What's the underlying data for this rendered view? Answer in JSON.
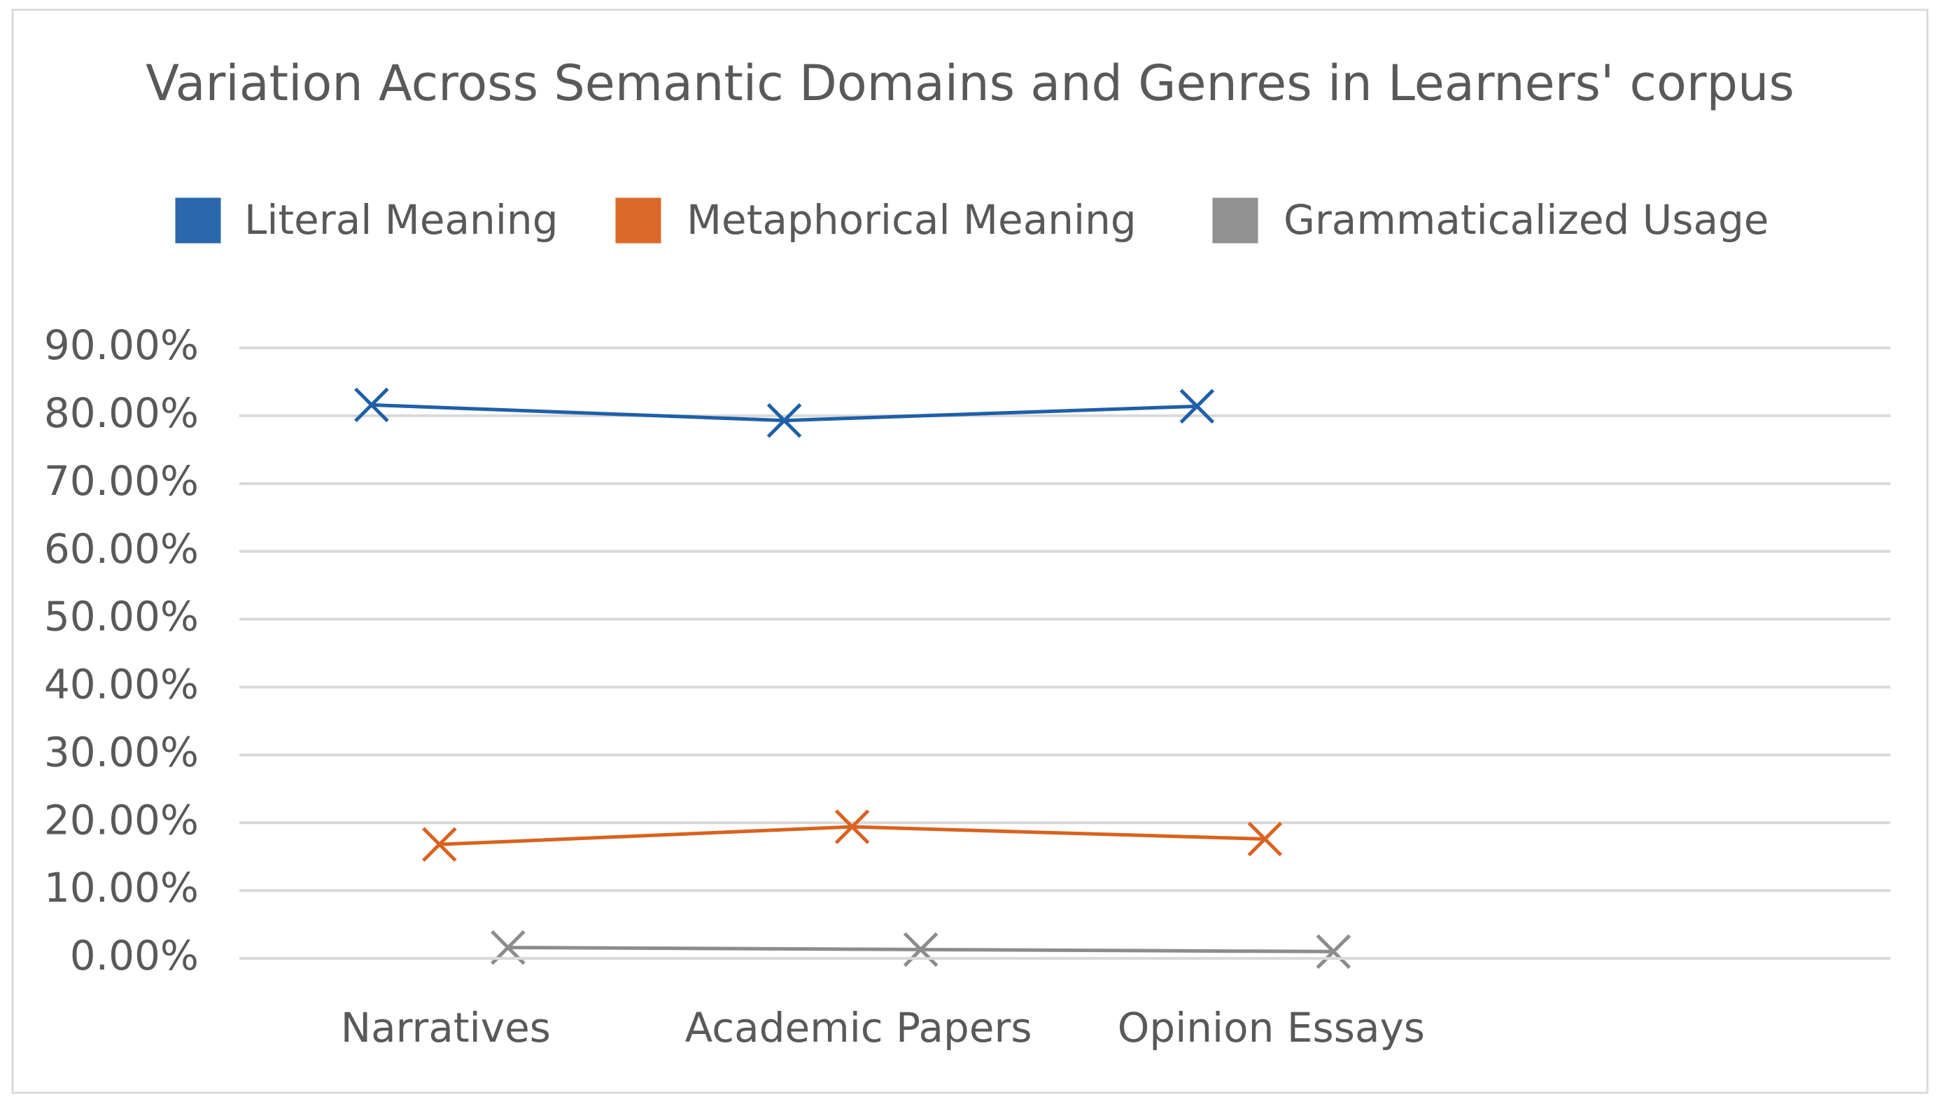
{
  "chart_data": {
    "type": "line",
    "title": "Variation Across Semantic Domains and Genres in Learners' corpus",
    "categories": [
      "Narratives",
      "Academic Papers",
      "Opinion Essays",
      null
    ],
    "series": [
      {
        "name": "Literal Meaning",
        "color": "#1f5fa8",
        "values": [
          81.6,
          79.3,
          81.4,
          null
        ]
      },
      {
        "name": "Metaphorical Meaning",
        "color": "#d9621f",
        "values": [
          16.8,
          19.4,
          17.6,
          null
        ]
      },
      {
        "name": "Grammaticalized Usage",
        "color": "#8c8c8c",
        "values": [
          1.6,
          1.3,
          1.0,
          null
        ]
      }
    ],
    "ylim": [
      0,
      90
    ],
    "yticks": [
      {
        "value": 0,
        "label": "0.00%"
      },
      {
        "value": 10,
        "label": "10.00%"
      },
      {
        "value": 20,
        "label": "20.00%"
      },
      {
        "value": 30,
        "label": "30.00%"
      },
      {
        "value": 40,
        "label": "40.00%"
      },
      {
        "value": 50,
        "label": "50.00%"
      },
      {
        "value": 60,
        "label": "60.00%"
      },
      {
        "value": 70,
        "label": "70.00%"
      },
      {
        "value": 80,
        "label": "80.00%"
      },
      {
        "value": 90,
        "label": "90.00%"
      }
    ],
    "grid": true,
    "legend": "top"
  }
}
